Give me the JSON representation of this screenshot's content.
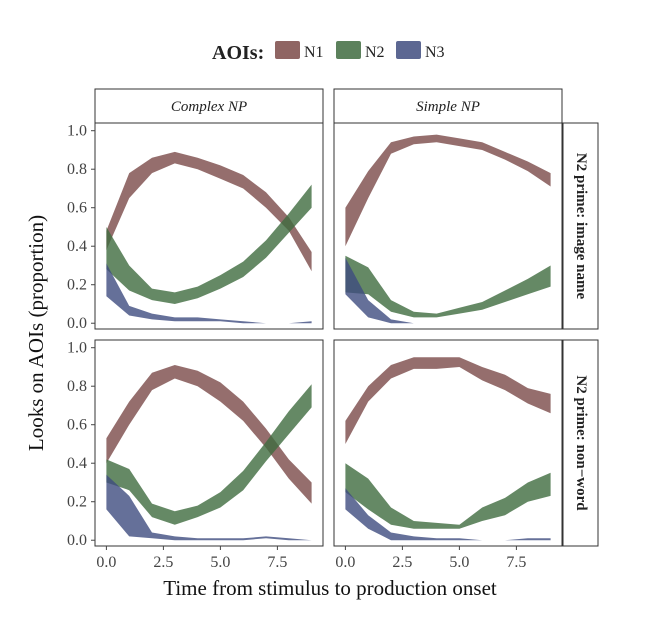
{
  "chart_data": {
    "type": "area",
    "legend": {
      "title": "AOIs:",
      "position": "top",
      "entries": [
        {
          "name": "N1",
          "color": "#7b4a48"
        },
        {
          "name": "N2",
          "color": "#3f6b3f"
        },
        {
          "name": "N3",
          "color": "#3f4c7f"
        }
      ]
    },
    "xlabel": "Time from stimulus to production onset",
    "ylabel": "Looks on AOIs (proportion)",
    "xlim": [
      -0.5,
      9.5
    ],
    "ylim": [
      -0.03,
      1.04
    ],
    "x_ticks": [
      "0.0",
      "2.5",
      "5.0",
      "7.5"
    ],
    "y_ticks": [
      "0.0",
      "0.2",
      "0.4",
      "0.6",
      "0.8",
      "1.0"
    ],
    "x": [
      0,
      1,
      2,
      3,
      4,
      5,
      6,
      7,
      8,
      9
    ],
    "columns": [
      "Complex NP",
      "Simple NP"
    ],
    "rows": [
      "N2 prime: image name",
      "N2 prime: non−word"
    ],
    "panels": [
      {
        "column": "Complex NP",
        "row": "N2 prime: image name",
        "series": [
          {
            "name": "N1",
            "lower": [
              0.38,
              0.65,
              0.78,
              0.83,
              0.8,
              0.75,
              0.7,
              0.6,
              0.48,
              0.27
            ],
            "upper": [
              0.48,
              0.78,
              0.86,
              0.89,
              0.86,
              0.82,
              0.77,
              0.68,
              0.55,
              0.37
            ]
          },
          {
            "name": "N2",
            "lower": [
              0.28,
              0.17,
              0.12,
              0.1,
              0.13,
              0.18,
              0.24,
              0.34,
              0.47,
              0.6
            ],
            "upper": [
              0.5,
              0.3,
              0.18,
              0.16,
              0.19,
              0.25,
              0.32,
              0.43,
              0.57,
              0.72
            ]
          },
          {
            "name": "N3",
            "lower": [
              0.14,
              0.04,
              0.02,
              0.01,
              0.01,
              0.01,
              0.0,
              0.0,
              0.0,
              0.0
            ],
            "upper": [
              0.31,
              0.09,
              0.05,
              0.03,
              0.03,
              0.02,
              0.01,
              0.0,
              0.0,
              0.01
            ]
          }
        ]
      },
      {
        "column": "Simple NP",
        "row": "N2 prime: image name",
        "series": [
          {
            "name": "N1",
            "lower": [
              0.4,
              0.65,
              0.88,
              0.93,
              0.94,
              0.92,
              0.9,
              0.85,
              0.79,
              0.71
            ],
            "upper": [
              0.6,
              0.79,
              0.94,
              0.97,
              0.98,
              0.96,
              0.94,
              0.89,
              0.84,
              0.78
            ]
          },
          {
            "name": "N2",
            "lower": [
              0.16,
              0.15,
              0.06,
              0.03,
              0.03,
              0.05,
              0.07,
              0.11,
              0.15,
              0.19
            ],
            "upper": [
              0.35,
              0.29,
              0.12,
              0.06,
              0.05,
              0.08,
              0.11,
              0.17,
              0.23,
              0.3
            ]
          },
          {
            "name": "N3",
            "lower": [
              0.15,
              0.03,
              0.0,
              0.0,
              0.0,
              0.0,
              0.0,
              0.0,
              0.0,
              0.0
            ],
            "upper": [
              0.34,
              0.12,
              0.02,
              0.0,
              0.0,
              0.0,
              0.0,
              0.0,
              0.0,
              0.0
            ]
          }
        ]
      },
      {
        "column": "Complex NP",
        "row": "N2 prime: non−word",
        "series": [
          {
            "name": "N1",
            "lower": [
              0.4,
              0.6,
              0.78,
              0.84,
              0.8,
              0.72,
              0.62,
              0.48,
              0.32,
              0.19
            ],
            "upper": [
              0.53,
              0.72,
              0.87,
              0.91,
              0.88,
              0.82,
              0.72,
              0.58,
              0.42,
              0.3
            ]
          },
          {
            "name": "N2",
            "lower": [
              0.3,
              0.26,
              0.12,
              0.08,
              0.12,
              0.17,
              0.26,
              0.41,
              0.55,
              0.69
            ],
            "upper": [
              0.42,
              0.37,
              0.19,
              0.15,
              0.18,
              0.25,
              0.36,
              0.51,
              0.67,
              0.81
            ]
          },
          {
            "name": "N3",
            "lower": [
              0.16,
              0.02,
              0.01,
              0.0,
              0.0,
              0.0,
              0.0,
              0.01,
              0.0,
              0.0
            ],
            "upper": [
              0.34,
              0.23,
              0.04,
              0.02,
              0.01,
              0.01,
              0.01,
              0.02,
              0.01,
              0.0
            ]
          }
        ]
      },
      {
        "column": "Simple NP",
        "row": "N2 prime: non−word",
        "series": [
          {
            "name": "N1",
            "lower": [
              0.5,
              0.72,
              0.84,
              0.89,
              0.89,
              0.9,
              0.83,
              0.78,
              0.71,
              0.66
            ],
            "upper": [
              0.62,
              0.8,
              0.91,
              0.95,
              0.95,
              0.95,
              0.9,
              0.86,
              0.79,
              0.76
            ]
          },
          {
            "name": "N2",
            "lower": [
              0.25,
              0.16,
              0.08,
              0.06,
              0.06,
              0.06,
              0.1,
              0.13,
              0.2,
              0.23
            ],
            "upper": [
              0.4,
              0.32,
              0.17,
              0.1,
              0.09,
              0.08,
              0.17,
              0.22,
              0.3,
              0.35
            ]
          },
          {
            "name": "N3",
            "lower": [
              0.16,
              0.06,
              0.0,
              0.0,
              0.0,
              0.0,
              0.0,
              0.0,
              0.0,
              0.0
            ],
            "upper": [
              0.27,
              0.13,
              0.04,
              0.02,
              0.01,
              0.01,
              0.0,
              0.0,
              0.01,
              0.01
            ]
          }
        ]
      }
    ]
  }
}
